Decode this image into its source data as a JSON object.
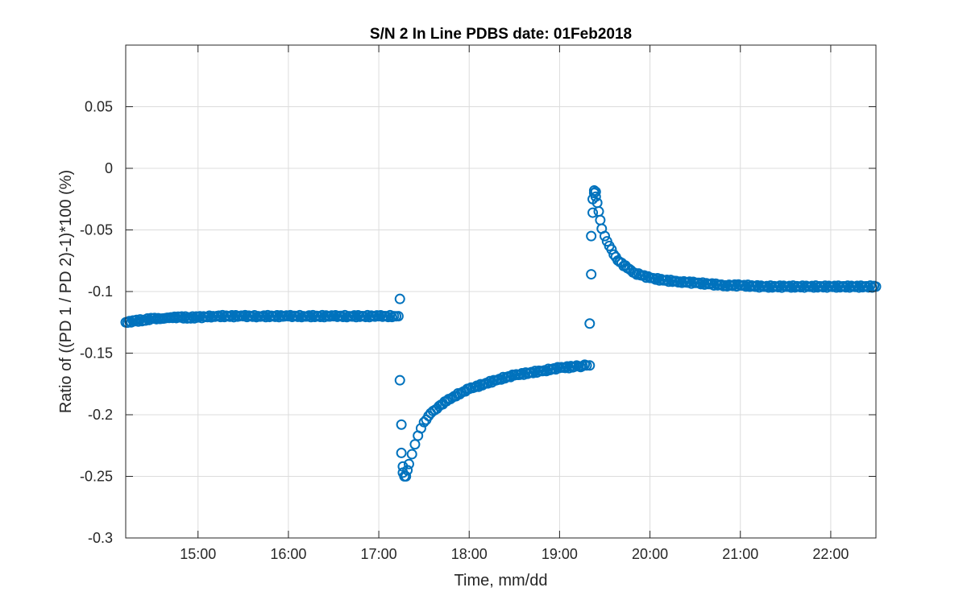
{
  "chart_data": {
    "type": "scatter",
    "title": "S/N 2 In Line PDBS date: 01Feb2018",
    "xlabel": "Time, mm/dd",
    "ylabel": "Ratio of ((PD 1 / PD 2)-1)*100 (%)",
    "xlim": [
      "14:12",
      "22:30"
    ],
    "ylim": [
      -0.3,
      0.1
    ],
    "x_ticks": [
      "15:00",
      "16:00",
      "17:00",
      "18:00",
      "19:00",
      "20:00",
      "21:00",
      "22:00"
    ],
    "y_ticks": [
      "0.05",
      "0",
      "-0.05",
      "-0.1",
      "-0.15",
      "-0.2",
      "-0.25",
      "-0.3"
    ],
    "y_tick_values": [
      0.05,
      0,
      -0.05,
      -0.1,
      -0.15,
      -0.2,
      -0.25,
      -0.3
    ],
    "grid": true,
    "marker": "open-circle",
    "series_color": "#0072BD",
    "series": [
      {
        "x": [
          "14:12",
          "14:18",
          "14:24",
          "14:30",
          "14:36",
          "14:42",
          "14:48",
          "14:54",
          "15:00",
          "15:10",
          "15:20",
          "15:30",
          "15:40",
          "15:50",
          "16:00",
          "16:10",
          "16:20",
          "16:30",
          "16:40",
          "16:50",
          "17:00",
          "17:05",
          "17:10",
          "17:13",
          "17:14",
          "17:14",
          "17:15",
          "17:15",
          "17:16",
          "17:16",
          "17:17",
          "17:18",
          "17:19",
          "17:20",
          "17:22",
          "17:24",
          "17:26",
          "17:28",
          "17:30",
          "17:33",
          "17:36",
          "17:40",
          "17:45",
          "17:50",
          "17:55",
          "18:00",
          "18:10",
          "18:20",
          "18:30",
          "18:40",
          "18:50",
          "19:00",
          "19:10",
          "19:18",
          "19:20",
          "19:20",
          "19:21",
          "19:21",
          "19:22",
          "19:22",
          "19:23",
          "19:23",
          "19:24",
          "19:24",
          "19:25",
          "19:26",
          "19:27",
          "19:28",
          "19:30",
          "19:33",
          "19:36",
          "19:40",
          "19:45",
          "19:50",
          "19:55",
          "20:00",
          "20:10",
          "20:20",
          "20:30",
          "20:40",
          "20:50",
          "21:00",
          "21:15",
          "21:30",
          "21:45",
          "22:00",
          "22:15",
          "22:30"
        ],
        "y": [
          -0.125,
          -0.124,
          -0.123,
          -0.122,
          -0.122,
          -0.121,
          -0.121,
          -0.121,
          -0.121,
          -0.12,
          -0.12,
          -0.12,
          -0.12,
          -0.12,
          -0.12,
          -0.12,
          -0.12,
          -0.12,
          -0.12,
          -0.12,
          -0.12,
          -0.12,
          -0.12,
          -0.12,
          -0.106,
          -0.172,
          -0.208,
          -0.231,
          -0.242,
          -0.247,
          -0.25,
          -0.25,
          -0.245,
          -0.24,
          -0.232,
          -0.224,
          -0.217,
          -0.211,
          -0.206,
          -0.201,
          -0.197,
          -0.193,
          -0.189,
          -0.185,
          -0.182,
          -0.179,
          -0.175,
          -0.171,
          -0.168,
          -0.166,
          -0.164,
          -0.162,
          -0.161,
          -0.16,
          -0.16,
          -0.126,
          -0.086,
          -0.055,
          -0.036,
          -0.025,
          -0.02,
          -0.018,
          -0.019,
          -0.023,
          -0.028,
          -0.035,
          -0.042,
          -0.049,
          -0.055,
          -0.063,
          -0.07,
          -0.076,
          -0.081,
          -0.085,
          -0.087,
          -0.089,
          -0.091,
          -0.092,
          -0.093,
          -0.094,
          -0.095,
          -0.095,
          -0.096,
          -0.096,
          -0.096,
          -0.096,
          -0.096,
          -0.096
        ]
      }
    ]
  }
}
